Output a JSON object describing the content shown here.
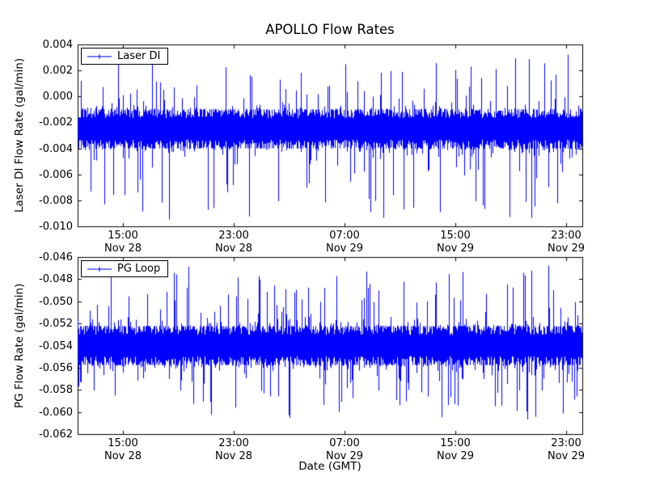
{
  "figure": {
    "background": "#ffffff",
    "line_color": "#0000ff"
  },
  "chart_data": [
    {
      "type": "line",
      "title": "APOLLO Flow Rates",
      "ylabel": "Laser DI Flow Rate (gal/min)",
      "ylim": [
        -0.01,
        0.004
      ],
      "ytick_labels": [
        "0.004",
        "0.002",
        "0.000",
        "-0.002",
        "-0.004",
        "-0.006",
        "-0.008",
        "-0.010"
      ],
      "xticks": [
        {
          "time": "15:00",
          "date": "Nov 28",
          "frac": 0.0897
        },
        {
          "time": "23:00",
          "date": "Nov 28",
          "frac": 0.3093
        },
        {
          "time": "07:00",
          "date": "Nov 29",
          "frac": 0.5288
        },
        {
          "time": "15:00",
          "date": "Nov 29",
          "frac": 0.7484
        },
        {
          "time": "23:00",
          "date": "Nov 29",
          "frac": 0.9679
        }
      ],
      "grid": false,
      "legend": {
        "label": "Laser DI",
        "position": "upper left"
      },
      "series": [
        {
          "name": "Laser DI",
          "color": "#0000ff",
          "signal": {
            "description": "dense noisy flow signal centered near -0.0025 gal/min with upward spikes to ~0.0035 and downward spikes to ~-0.0095",
            "baseline": -0.0025,
            "dense_halfwidth": 0.0015,
            "spike_up": {
              "prob": 0.35,
              "max": 0.0045,
              "sharpness": 6
            },
            "spike_down": {
              "prob": 0.4,
              "max": 0.0055,
              "sharpness": 6
            }
          }
        }
      ]
    },
    {
      "type": "line",
      "xlabel": "Date (GMT)",
      "ylabel": "PG Flow Rate (gal/min)",
      "ylim": [
        -0.062,
        -0.046
      ],
      "ytick_labels": [
        "-0.046",
        "-0.048",
        "-0.050",
        "-0.052",
        "-0.054",
        "-0.056",
        "-0.058",
        "-0.060",
        "-0.062"
      ],
      "xticks": [
        {
          "time": "15:00",
          "date": "Nov 28",
          "frac": 0.0897
        },
        {
          "time": "23:00",
          "date": "Nov 28",
          "frac": 0.3093
        },
        {
          "time": "07:00",
          "date": "Nov 29",
          "frac": 0.5288
        },
        {
          "time": "15:00",
          "date": "Nov 29",
          "frac": 0.7484
        },
        {
          "time": "23:00",
          "date": "Nov 29",
          "frac": 0.9679
        }
      ],
      "grid": false,
      "legend": {
        "label": "PG Loop",
        "position": "upper left"
      },
      "series": [
        {
          "name": "PG Loop",
          "color": "#0000ff",
          "signal": {
            "description": "dense noisy flow signal centered near -0.054 gal/min with upward spikes to ~-0.047 and downward spikes to ~-0.0605",
            "baseline": -0.054,
            "dense_halfwidth": 0.00175,
            "spike_up": {
              "prob": 0.45,
              "max": 0.0055,
              "sharpness": 6
            },
            "spike_down": {
              "prob": 0.45,
              "max": 0.005,
              "sharpness": 6
            }
          }
        }
      ]
    }
  ]
}
